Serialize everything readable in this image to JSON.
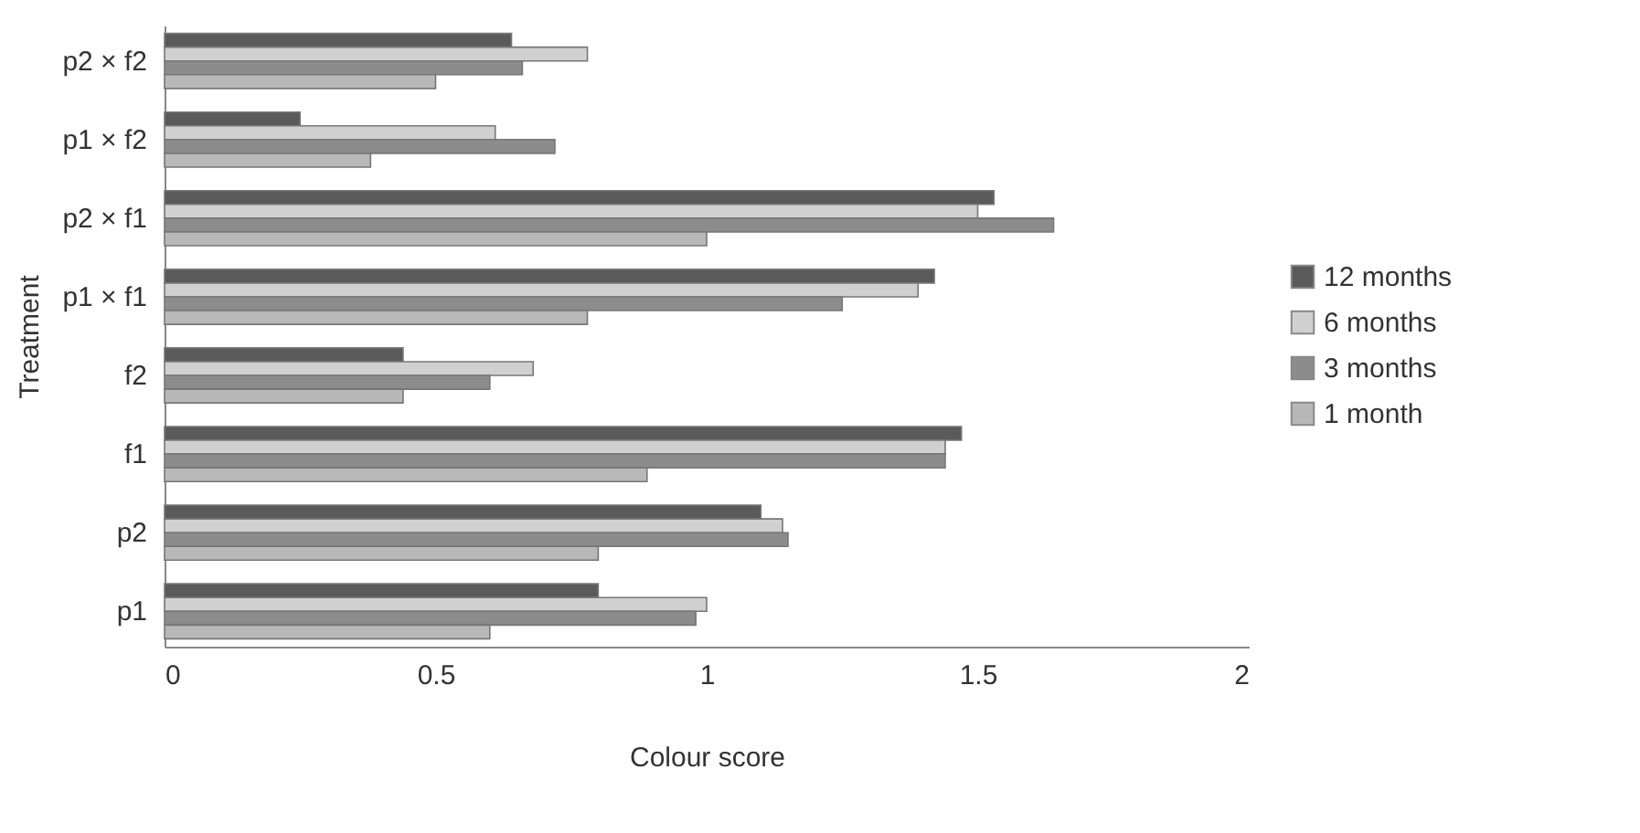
{
  "chart_data": {
    "type": "bar",
    "orientation": "horizontal",
    "xlabel": "Colour score",
    "ylabel": "Treatment",
    "categories": [
      "p2 × f2",
      "p1 × f2",
      "p2 × f1",
      "p1 × f1",
      "f2",
      "f1",
      "p2",
      "p1"
    ],
    "series": [
      {
        "name": "12 months",
        "color": "#5a5a5a",
        "values": [
          0.64,
          0.25,
          1.53,
          1.42,
          0.44,
          1.47,
          1.1,
          0.8
        ]
      },
      {
        "name": "6 months",
        "color": "#d0d0d0",
        "values": [
          0.78,
          0.61,
          1.5,
          1.39,
          0.68,
          1.44,
          1.14,
          1.0
        ]
      },
      {
        "name": "3 months",
        "color": "#8c8c8c",
        "values": [
          0.66,
          0.72,
          1.64,
          1.25,
          0.6,
          1.44,
          1.15,
          0.98
        ]
      },
      {
        "name": "1 month",
        "color": "#b8b8b8",
        "values": [
          0.5,
          0.38,
          1.0,
          0.78,
          0.44,
          0.89,
          0.8,
          0.6
        ]
      }
    ],
    "xlim": [
      0,
      2
    ],
    "xticks": [
      0,
      0.5,
      1,
      1.5,
      2
    ],
    "grid": false,
    "legend": "right"
  }
}
